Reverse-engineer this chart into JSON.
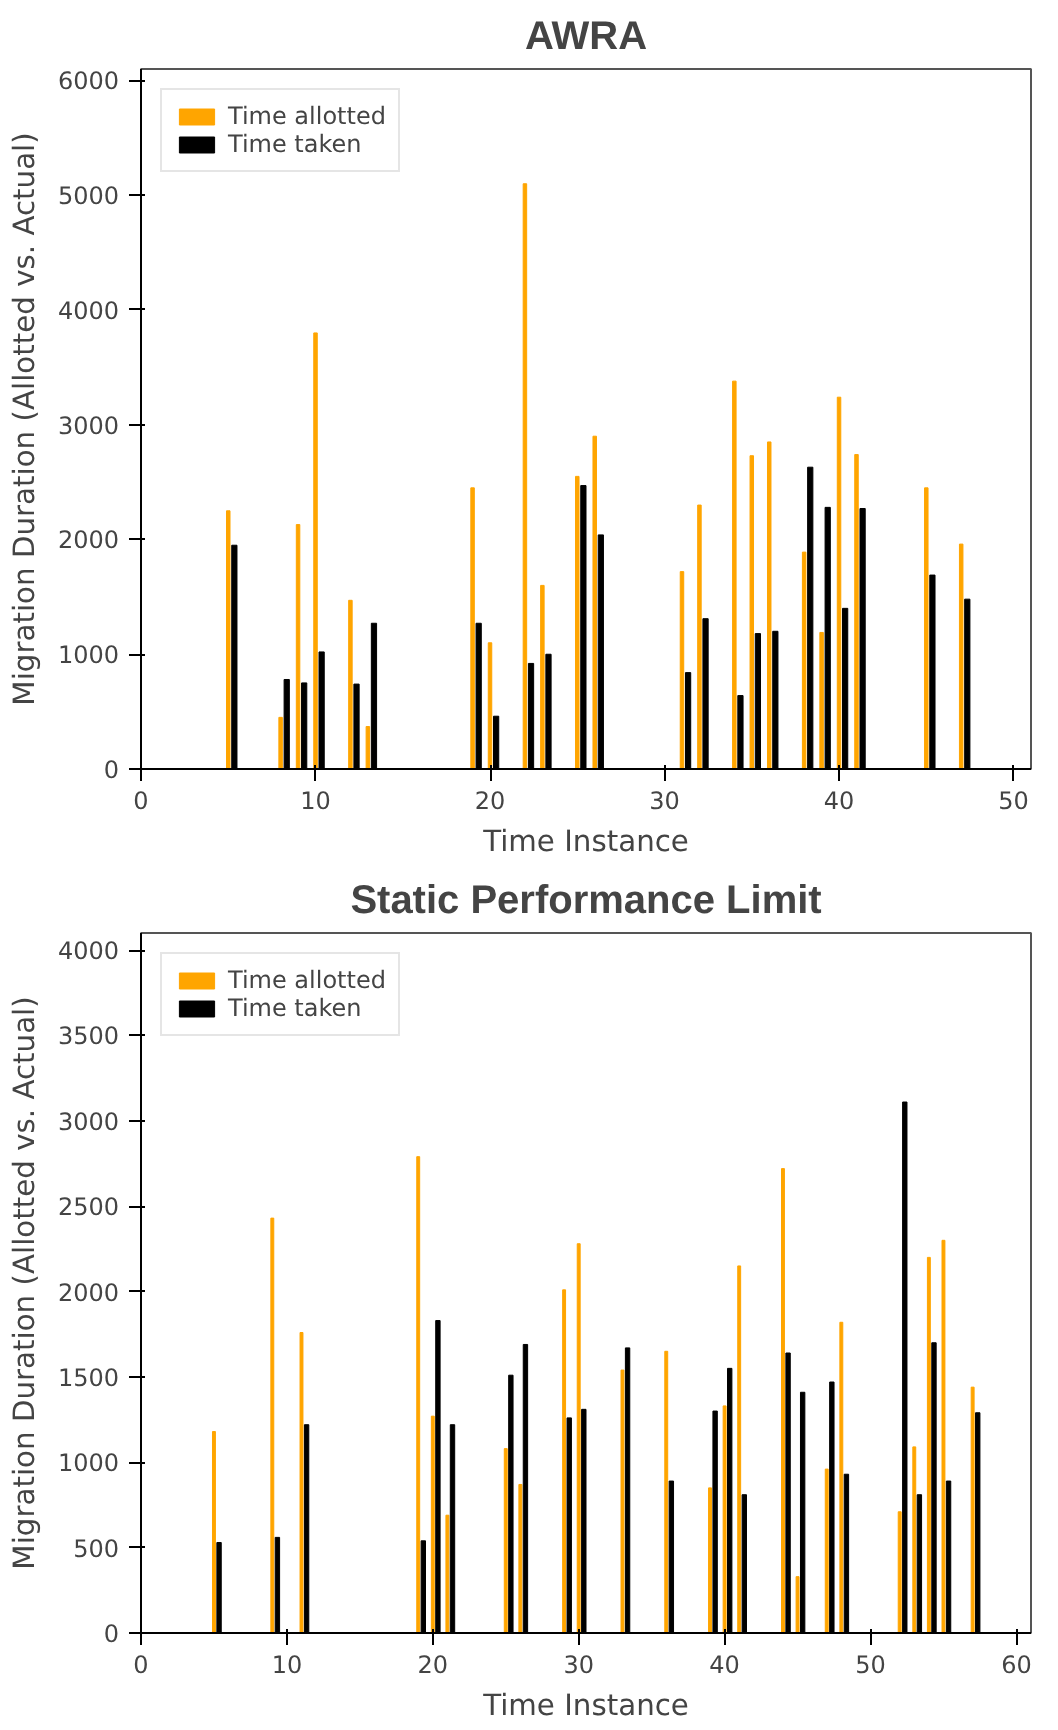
{
  "chart_data": [
    {
      "type": "bar",
      "title": "AWRA",
      "xlabel": "Time Instance",
      "ylabel": "Migration Duration (Allotted vs. Actual)",
      "x": [
        5,
        8,
        9,
        10,
        12,
        13,
        19,
        20,
        22,
        23,
        25,
        26,
        31,
        32,
        34,
        35,
        36,
        38,
        39,
        40,
        41,
        45,
        47
      ],
      "series": [
        {
          "name": "Time allotted",
          "color": "#ffa500",
          "values": [
            2250,
            450,
            2130,
            3800,
            1470,
            370,
            2450,
            1100,
            5100,
            1600,
            2550,
            2900,
            1720,
            2300,
            3380,
            2730,
            2850,
            1890,
            1190,
            3240,
            2740,
            2450,
            1960
          ]
        },
        {
          "name": "Time taken",
          "color": "#000000",
          "values": [
            1950,
            780,
            750,
            1020,
            740,
            1270,
            1270,
            460,
            920,
            1000,
            2470,
            2040,
            840,
            1310,
            640,
            1180,
            1200,
            2630,
            2280,
            1400,
            2270,
            1690,
            1480
          ]
        }
      ],
      "xlim": [
        0,
        51
      ],
      "xticks": [
        0,
        10,
        20,
        30,
        40,
        50
      ],
      "ylim": [
        0,
        6100
      ],
      "yticks": [
        0,
        1000,
        2000,
        3000,
        4000,
        5000,
        6000
      ],
      "grid": false,
      "legend": "top left"
    },
    {
      "type": "bar",
      "title": "Static Performance Limit",
      "xlabel": "Time Instance",
      "ylabel": "Migration Duration (Allotted vs. Actual)",
      "x": [
        5,
        9,
        11,
        19,
        20,
        21,
        25,
        26,
        29,
        30,
        33,
        36,
        39,
        40,
        41,
        44,
        45,
        47,
        48,
        52,
        53,
        54,
        55,
        57
      ],
      "series": [
        {
          "name": "Time allotted",
          "color": "#ffa500",
          "values": [
            1180,
            2430,
            1760,
            2790,
            1270,
            690,
            1080,
            870,
            2010,
            2280,
            1540,
            1650,
            850,
            1330,
            2150,
            2720,
            330,
            960,
            1820,
            710,
            1090,
            2200,
            2300,
            1440
          ]
        },
        {
          "name": "Time taken",
          "color": "#000000",
          "values": [
            530,
            560,
            1220,
            540,
            1830,
            1220,
            1510,
            1690,
            1260,
            1310,
            1670,
            890,
            1300,
            1550,
            810,
            1640,
            1410,
            1470,
            930,
            3110,
            810,
            1700,
            890,
            1290
          ]
        }
      ],
      "xlim": [
        0,
        61
      ],
      "xticks": [
        0,
        10,
        20,
        30,
        40,
        50,
        60
      ],
      "ylim": [
        0,
        4100
      ],
      "yticks": [
        0,
        500,
        1000,
        1500,
        2000,
        2500,
        3000,
        3500,
        4000
      ],
      "grid": false,
      "legend": "top left"
    }
  ]
}
